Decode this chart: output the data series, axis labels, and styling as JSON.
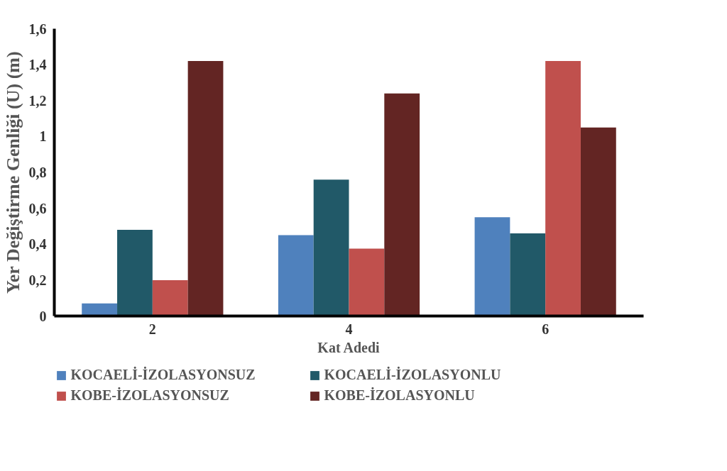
{
  "chart_data": {
    "type": "bar",
    "xlabel": "Kat Adedi",
    "ylabel": "Yer Değiştirme Genliği (U) (m)",
    "categories": [
      "2",
      "4",
      "6"
    ],
    "series": [
      {
        "name": "KOCAELİ-İZOLASYONSUZ",
        "color": "#4f81bd",
        "values": [
          0.07,
          0.45,
          0.55
        ]
      },
      {
        "name": "KOCAELİ-İZOLASYONLU",
        "color": "#215968",
        "values": [
          0.48,
          0.76,
          0.46
        ]
      },
      {
        "name": "KOBE-İZOLASYONSUZ",
        "color": "#c0504d",
        "values": [
          0.2,
          0.375,
          1.42
        ]
      },
      {
        "name": "KOBE-İZOLASYONLU",
        "color": "#632523",
        "values": [
          1.42,
          1.24,
          1.05
        ]
      }
    ],
    "ylim": [
      0,
      1.6
    ],
    "yticks": [
      0,
      {
        "value": 0.2,
        "label": "0,2"
      },
      {
        "value": 0.4,
        "label": "0,4"
      },
      {
        "value": 0.6,
        "label": "0,6"
      },
      {
        "value": 0.8,
        "label": "0,8"
      },
      1,
      {
        "value": 1.2,
        "label": "1,2"
      },
      {
        "value": 1.4,
        "label": "1,4"
      },
      {
        "value": 1.6,
        "label": "1,6"
      }
    ],
    "grid": false,
    "legend": "bottom"
  }
}
